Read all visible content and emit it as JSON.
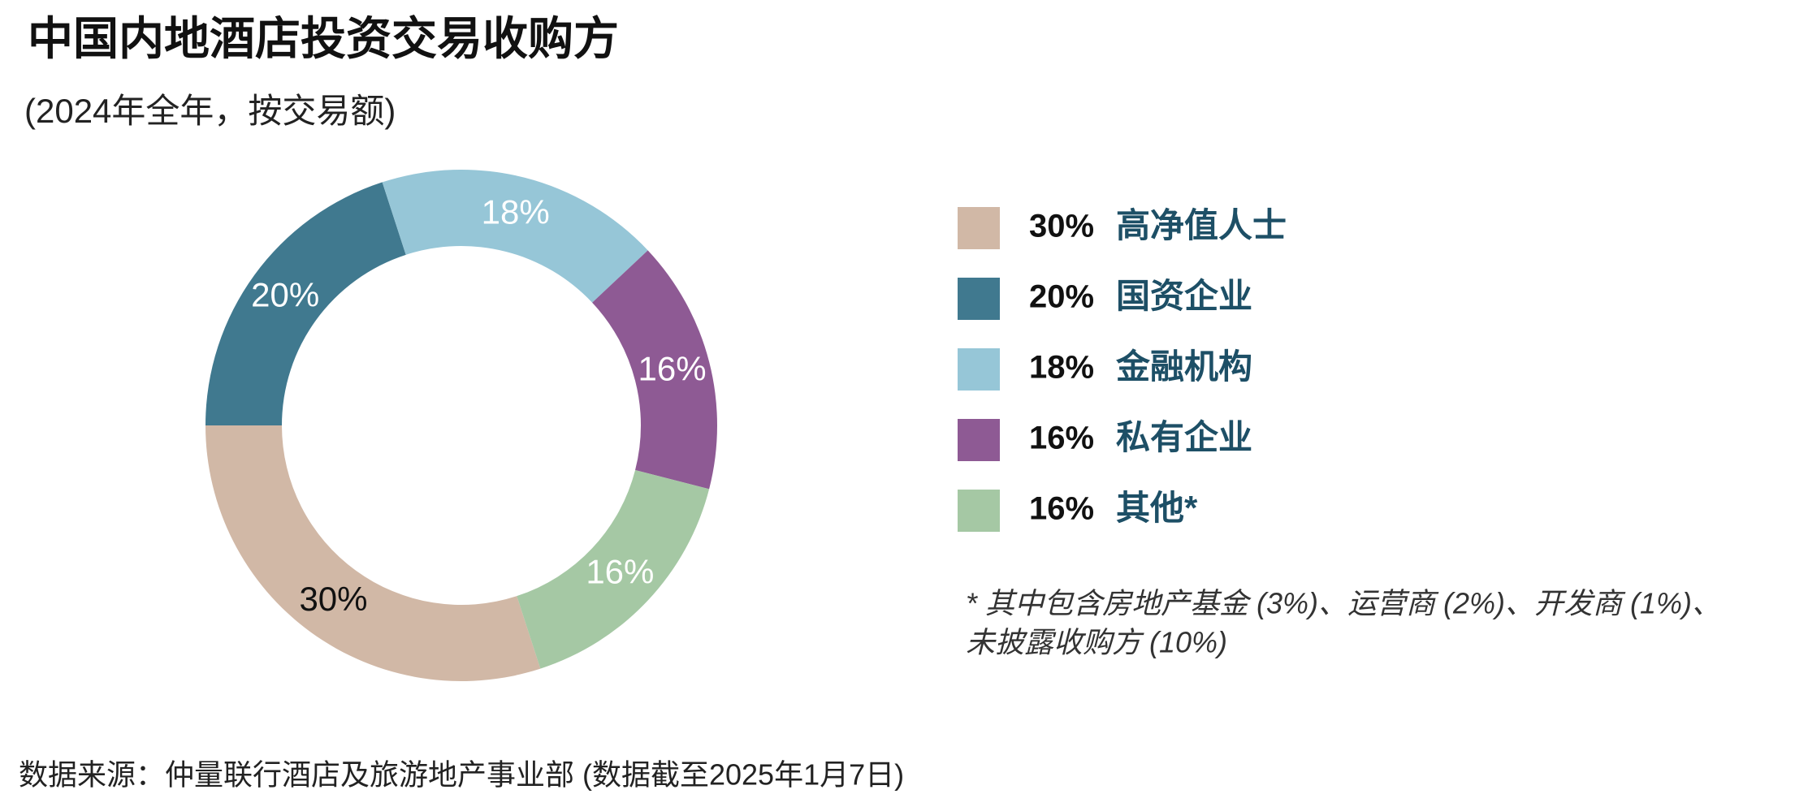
{
  "chart_data": {
    "type": "donut",
    "title": "中国内地酒店投资交易收购方",
    "subtitle": "(2024年全年，按交易额)",
    "categories": [
      "高净值人士",
      "国资企业",
      "金融机构",
      "私有企业",
      "其他*"
    ],
    "values": [
      30,
      20,
      18,
      16,
      16
    ],
    "value_labels": [
      "30%",
      "20%",
      "18%",
      "16%",
      "16%"
    ],
    "colors": [
      "#d1b8a6",
      "#40798f",
      "#96c6d7",
      "#8e5a94",
      "#a5c8a4"
    ],
    "label_colors": [
      "#111111",
      "#ffffff",
      "#ffffff",
      "#ffffff",
      "#ffffff"
    ],
    "footnote": [
      "* 其中包含房地产基金 (3%)、运营商 (2%)、开发商 (1%)、",
      "未披露收购方 (10%)"
    ],
    "source": "数据来源：仲量联行酒店及旅游地产事业部 (数据截至2025年1月7日)"
  }
}
